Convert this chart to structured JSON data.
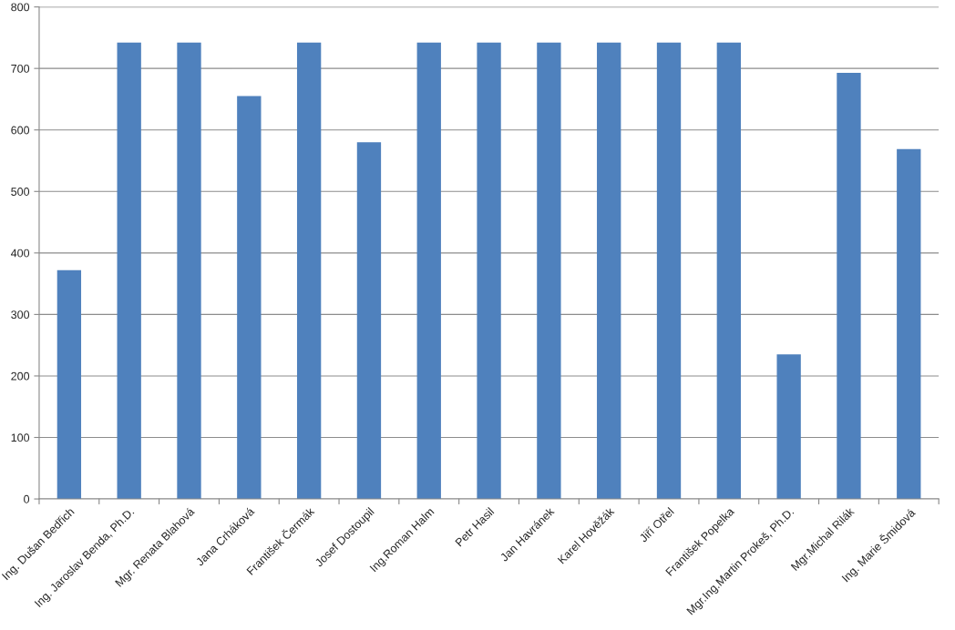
{
  "chart_data": {
    "type": "bar",
    "categories": [
      "Ing. Dušan Bedřich",
      "Ing. Jaroslav Benda, Ph.D.",
      "Mgr. Renata Blahová",
      "Jana Crháková",
      "František Čermák",
      "Josef Dostoupil",
      "Ing.Roman Halm",
      "Petr Hasil",
      "Jan Havránek",
      "Karel Hověžák",
      "Jiří Otřel",
      "František Popelka",
      "Mgr.Ing.Martin Prokeš, Ph.D.",
      "Mgr.Michal Rilák",
      "Ing. Marie Šmidová"
    ],
    "values": [
      372,
      742,
      742,
      655,
      742,
      580,
      742,
      742,
      742,
      742,
      742,
      742,
      235,
      693,
      569
    ],
    "color": "#4f81bd",
    "ylim": [
      0,
      800
    ],
    "yticks": [
      0,
      100,
      200,
      300,
      400,
      500,
      600,
      700,
      800
    ],
    "grid": "y",
    "legend": false
  }
}
